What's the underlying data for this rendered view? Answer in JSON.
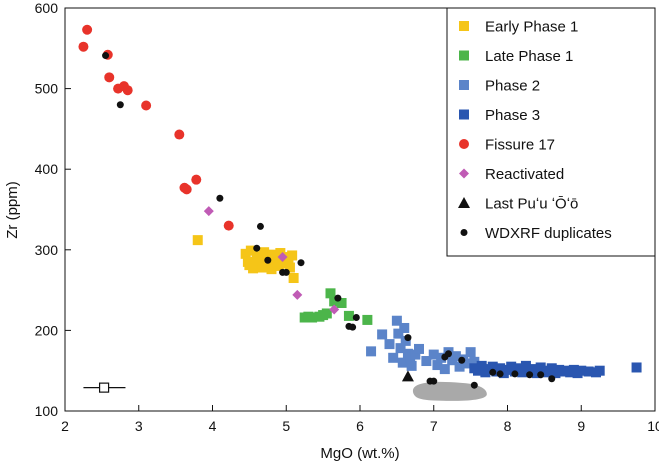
{
  "chart_data": {
    "type": "scatter",
    "title": "",
    "xlabel": "MgO (wt.%)",
    "ylabel": "Zr (ppm)",
    "xlim": [
      2,
      10
    ],
    "ylim": [
      100,
      600
    ],
    "xticks": [
      2,
      3,
      4,
      5,
      6,
      7,
      8,
      9,
      10
    ],
    "yticks": [
      100,
      200,
      300,
      400,
      500,
      600
    ],
    "grid": false,
    "legend_position": "top-right",
    "series": [
      {
        "name": "Early Phase 1",
        "marker": "square",
        "color": "#f5c518",
        "points": [
          [
            3.8,
            312
          ],
          [
            4.45,
            295
          ],
          [
            4.48,
            285
          ],
          [
            4.5,
            281
          ],
          [
            4.52,
            299
          ],
          [
            4.55,
            277
          ],
          [
            4.6,
            292
          ],
          [
            4.62,
            283
          ],
          [
            4.65,
            287
          ],
          [
            4.68,
            278
          ],
          [
            4.7,
            297
          ],
          [
            4.72,
            282
          ],
          [
            4.75,
            290
          ],
          [
            4.78,
            286
          ],
          [
            4.8,
            276
          ],
          [
            4.82,
            294
          ],
          [
            4.85,
            288
          ],
          [
            4.88,
            284
          ],
          [
            4.9,
            280
          ],
          [
            4.92,
            296
          ],
          [
            4.95,
            291
          ],
          [
            4.97,
            283
          ],
          [
            5.0,
            286
          ],
          [
            5.03,
            289
          ],
          [
            5.05,
            278
          ],
          [
            5.08,
            293
          ],
          [
            5.1,
            265
          ]
        ]
      },
      {
        "name": "Late Phase 1",
        "marker": "square",
        "color": "#4cb54a",
        "points": [
          [
            5.25,
            216
          ],
          [
            5.3,
            217
          ],
          [
            5.35,
            216
          ],
          [
            5.45,
            217
          ],
          [
            5.5,
            219
          ],
          [
            5.55,
            221
          ],
          [
            5.6,
            246
          ],
          [
            5.65,
            236
          ],
          [
            5.75,
            234
          ],
          [
            5.85,
            218
          ],
          [
            6.1,
            213
          ]
        ]
      },
      {
        "name": "Phase 2",
        "marker": "square",
        "color": "#5b84c9",
        "points": [
          [
            6.15,
            174
          ],
          [
            6.3,
            195
          ],
          [
            6.4,
            183
          ],
          [
            6.45,
            166
          ],
          [
            6.5,
            212
          ],
          [
            6.52,
            196
          ],
          [
            6.55,
            178
          ],
          [
            6.58,
            160
          ],
          [
            6.6,
            203
          ],
          [
            6.62,
            187
          ],
          [
            6.65,
            171
          ],
          [
            6.68,
            166
          ],
          [
            6.7,
            156
          ],
          [
            6.75,
            170
          ],
          [
            6.8,
            177
          ],
          [
            6.9,
            162
          ],
          [
            7.0,
            170
          ],
          [
            7.05,
            157
          ],
          [
            7.1,
            166
          ],
          [
            7.15,
            152
          ],
          [
            7.2,
            173
          ],
          [
            7.25,
            163
          ],
          [
            7.3,
            168
          ],
          [
            7.35,
            155
          ],
          [
            7.4,
            164
          ],
          [
            7.45,
            159
          ],
          [
            7.5,
            173
          ],
          [
            7.55,
            161
          ]
        ]
      },
      {
        "name": "Phase 3",
        "marker": "square",
        "color": "#2a56b0",
        "points": [
          [
            7.55,
            153
          ],
          [
            7.6,
            150
          ],
          [
            7.65,
            156
          ],
          [
            7.7,
            148
          ],
          [
            7.75,
            152
          ],
          [
            7.8,
            155
          ],
          [
            7.85,
            149
          ],
          [
            7.9,
            153
          ],
          [
            7.95,
            147
          ],
          [
            8.0,
            151
          ],
          [
            8.05,
            155
          ],
          [
            8.1,
            149
          ],
          [
            8.15,
            153
          ],
          [
            8.2,
            148
          ],
          [
            8.25,
            156
          ],
          [
            8.3,
            150
          ],
          [
            8.35,
            152
          ],
          [
            8.4,
            147
          ],
          [
            8.45,
            154
          ],
          [
            8.5,
            150
          ],
          [
            8.55,
            148
          ],
          [
            8.6,
            153
          ],
          [
            8.65,
            147
          ],
          [
            8.7,
            151
          ],
          [
            8.75,
            149
          ],
          [
            8.8,
            150
          ],
          [
            8.85,
            148
          ],
          [
            8.9,
            151
          ],
          [
            8.95,
            147
          ],
          [
            9.0,
            150
          ],
          [
            9.1,
            149
          ],
          [
            9.2,
            148
          ],
          [
            9.25,
            150
          ],
          [
            9.75,
            154
          ]
        ]
      },
      {
        "name": "Fissure 17",
        "marker": "circle",
        "color": "#e8332a",
        "points": [
          [
            2.25,
            552
          ],
          [
            2.3,
            573
          ],
          [
            2.58,
            542
          ],
          [
            2.6,
            514
          ],
          [
            2.72,
            500
          ],
          [
            2.8,
            503
          ],
          [
            2.85,
            498
          ],
          [
            3.1,
            479
          ],
          [
            3.55,
            443
          ],
          [
            3.62,
            377
          ],
          [
            3.65,
            375
          ],
          [
            3.78,
            387
          ],
          [
            4.22,
            330
          ]
        ]
      },
      {
        "name": "Reactivated",
        "marker": "diamond",
        "color": "#c05bb5",
        "points": [
          [
            3.95,
            348
          ],
          [
            4.95,
            291
          ],
          [
            5.15,
            244
          ],
          [
            5.65,
            226
          ]
        ]
      },
      {
        "name": "Last Puʻu ʻŌʻō",
        "marker": "triangle",
        "color": "#111111",
        "points": [
          [
            6.65,
            143
          ]
        ]
      },
      {
        "name": "WDXRF duplicates",
        "marker": "dot",
        "color": "#111111",
        "points": [
          [
            2.55,
            541
          ],
          [
            2.75,
            480
          ],
          [
            4.1,
            364
          ],
          [
            4.6,
            302
          ],
          [
            4.65,
            329
          ],
          [
            4.75,
            287
          ],
          [
            4.95,
            272
          ],
          [
            5.0,
            272
          ],
          [
            5.2,
            284
          ],
          [
            5.7,
            240
          ],
          [
            5.85,
            205
          ],
          [
            5.9,
            204
          ],
          [
            5.95,
            216
          ],
          [
            6.65,
            191
          ],
          [
            6.95,
            137
          ],
          [
            7.0,
            137
          ],
          [
            7.15,
            167
          ],
          [
            7.2,
            171
          ],
          [
            7.38,
            163
          ],
          [
            7.55,
            132
          ],
          [
            7.8,
            148
          ],
          [
            7.9,
            146
          ],
          [
            8.1,
            146
          ],
          [
            8.3,
            145
          ],
          [
            8.45,
            145
          ],
          [
            8.6,
            140
          ]
        ]
      }
    ]
  }
}
